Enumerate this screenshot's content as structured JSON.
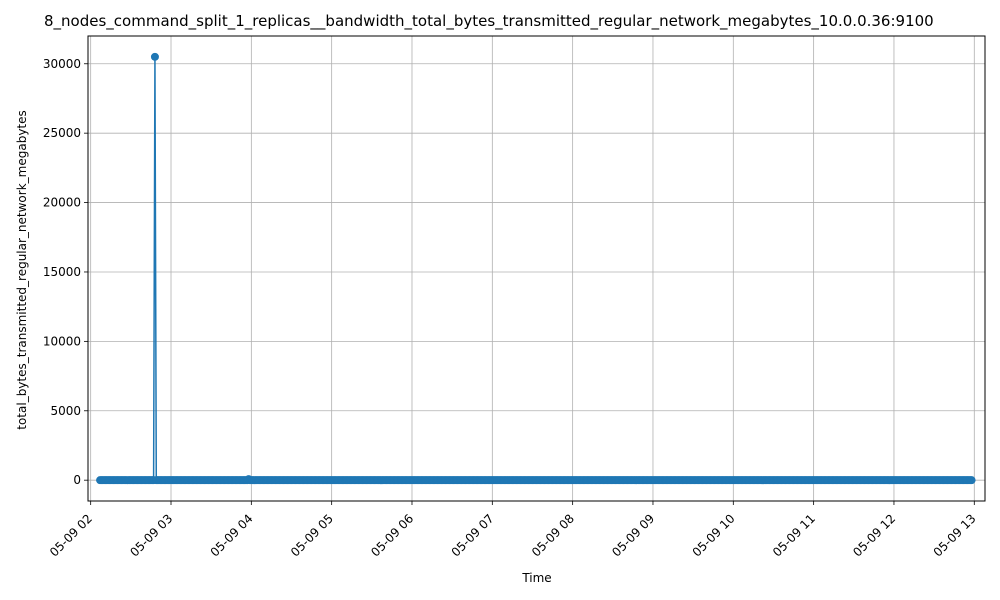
{
  "chart_data": {
    "type": "line",
    "title": "8_nodes_command_split_1_replicas__bandwidth_total_bytes_transmitted_regular_network_megabytes_10.0.0.36:9100",
    "xlabel": "Time",
    "ylabel": "total_bytes_transmitted_regular_network_megabytes",
    "x_ticks": [
      "05-09 02",
      "05-09 03",
      "05-09 04",
      "05-09 05",
      "05-09 06",
      "05-09 07",
      "05-09 08",
      "05-09 09",
      "05-09 10",
      "05-09 11",
      "05-09 12",
      "05-09 13"
    ],
    "y_ticks": [
      "0",
      "5000",
      "10000",
      "15000",
      "20000",
      "25000",
      "30000"
    ],
    "xlim": [
      "2024-05-09 01:58",
      "2024-05-09 13:08"
    ],
    "ylim": [
      -1500,
      32000
    ],
    "grid": true,
    "color": "#1f77b4",
    "series": [
      {
        "x_start": "2024-05-09 02:07",
        "x_end": "2024-05-09 12:58",
        "baseline_value": 0,
        "sample_interval_minutes": 1,
        "points": [
          {
            "x": "2024-05-09 02:48",
            "y": 30500
          },
          {
            "x": "2024-05-09 03:58",
            "y": 80
          }
        ]
      }
    ]
  }
}
